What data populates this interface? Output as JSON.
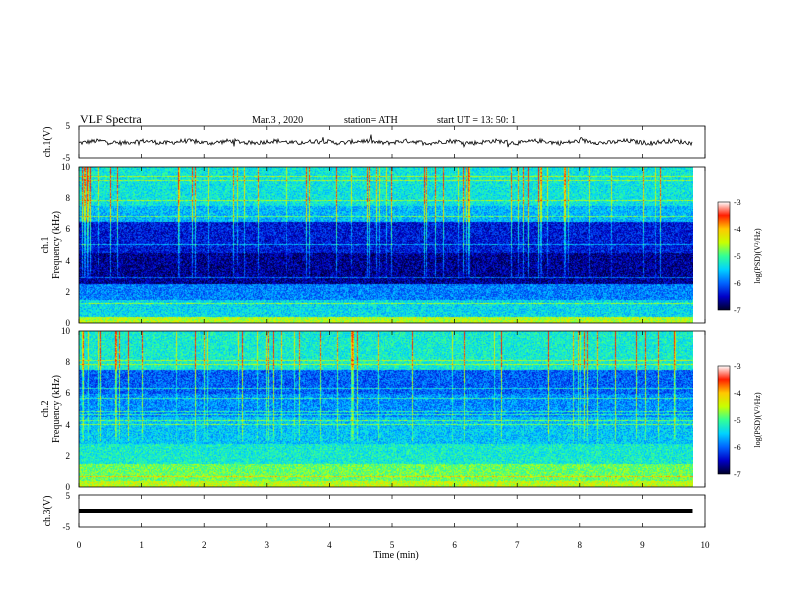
{
  "header": {
    "title": "VLF  Spectra",
    "date": "Mar.3   , 2020",
    "station": "station= ATH",
    "start_ut": "start  UT  =   13: 50: 1"
  },
  "colors": {
    "spectrogram_colormap": [
      "#000028",
      "#0000c8",
      "#0064ff",
      "#00d2ff",
      "#32ff96",
      "#c8ff00",
      "#ffc800",
      "#ff1e00",
      "#ffffff"
    ],
    "waveform": "#000000"
  },
  "chart_data": [
    {
      "type": "line",
      "name": "ch1-waveform",
      "ylabel": "ch.1(V)",
      "yticks": [
        "5",
        "-5"
      ],
      "ylim": [
        -5,
        5
      ],
      "baseline": 0,
      "x_range": [
        0,
        9.8
      ]
    },
    {
      "type": "heatmap",
      "name": "ch1-spectrogram",
      "ylabel": "Frequency  (kHz)",
      "channel_label": "ch.1",
      "yticks": [
        "0",
        "2",
        "4",
        "6",
        "8",
        "10"
      ],
      "ylim": [
        0,
        10
      ],
      "x_range": [
        0,
        9.8
      ],
      "colorbar": {
        "label": "log(PSD)(V²/Hz)",
        "ticks": [
          "-3",
          "-4",
          "-5",
          "-6",
          "-7"
        ],
        "range": [
          -7,
          -3
        ]
      }
    },
    {
      "type": "heatmap",
      "name": "ch2-spectrogram",
      "ylabel": "Frequency  (kHz)",
      "channel_label": "ch.2",
      "yticks": [
        "0",
        "2",
        "4",
        "6",
        "8",
        "10"
      ],
      "ylim": [
        0,
        10
      ],
      "x_range": [
        0,
        9.8
      ],
      "colorbar": {
        "label": "log(PSD)(V²/Hz)",
        "ticks": [
          "-3",
          "-4",
          "-5",
          "-6",
          "-7"
        ],
        "range": [
          -7,
          -3
        ]
      }
    },
    {
      "type": "line",
      "name": "ch3-waveform",
      "ylabel": "ch.3(V)",
      "yticks": [
        "5",
        "-5"
      ],
      "ylim": [
        -5,
        5
      ],
      "baseline": 0,
      "x_range": [
        0,
        9.8
      ]
    }
  ],
  "xaxis": {
    "label": "Time  (min)",
    "ticks": [
      "0",
      "1",
      "2",
      "3",
      "4",
      "5",
      "6",
      "7",
      "8",
      "9",
      "10"
    ],
    "xlim": [
      0,
      10
    ]
  }
}
